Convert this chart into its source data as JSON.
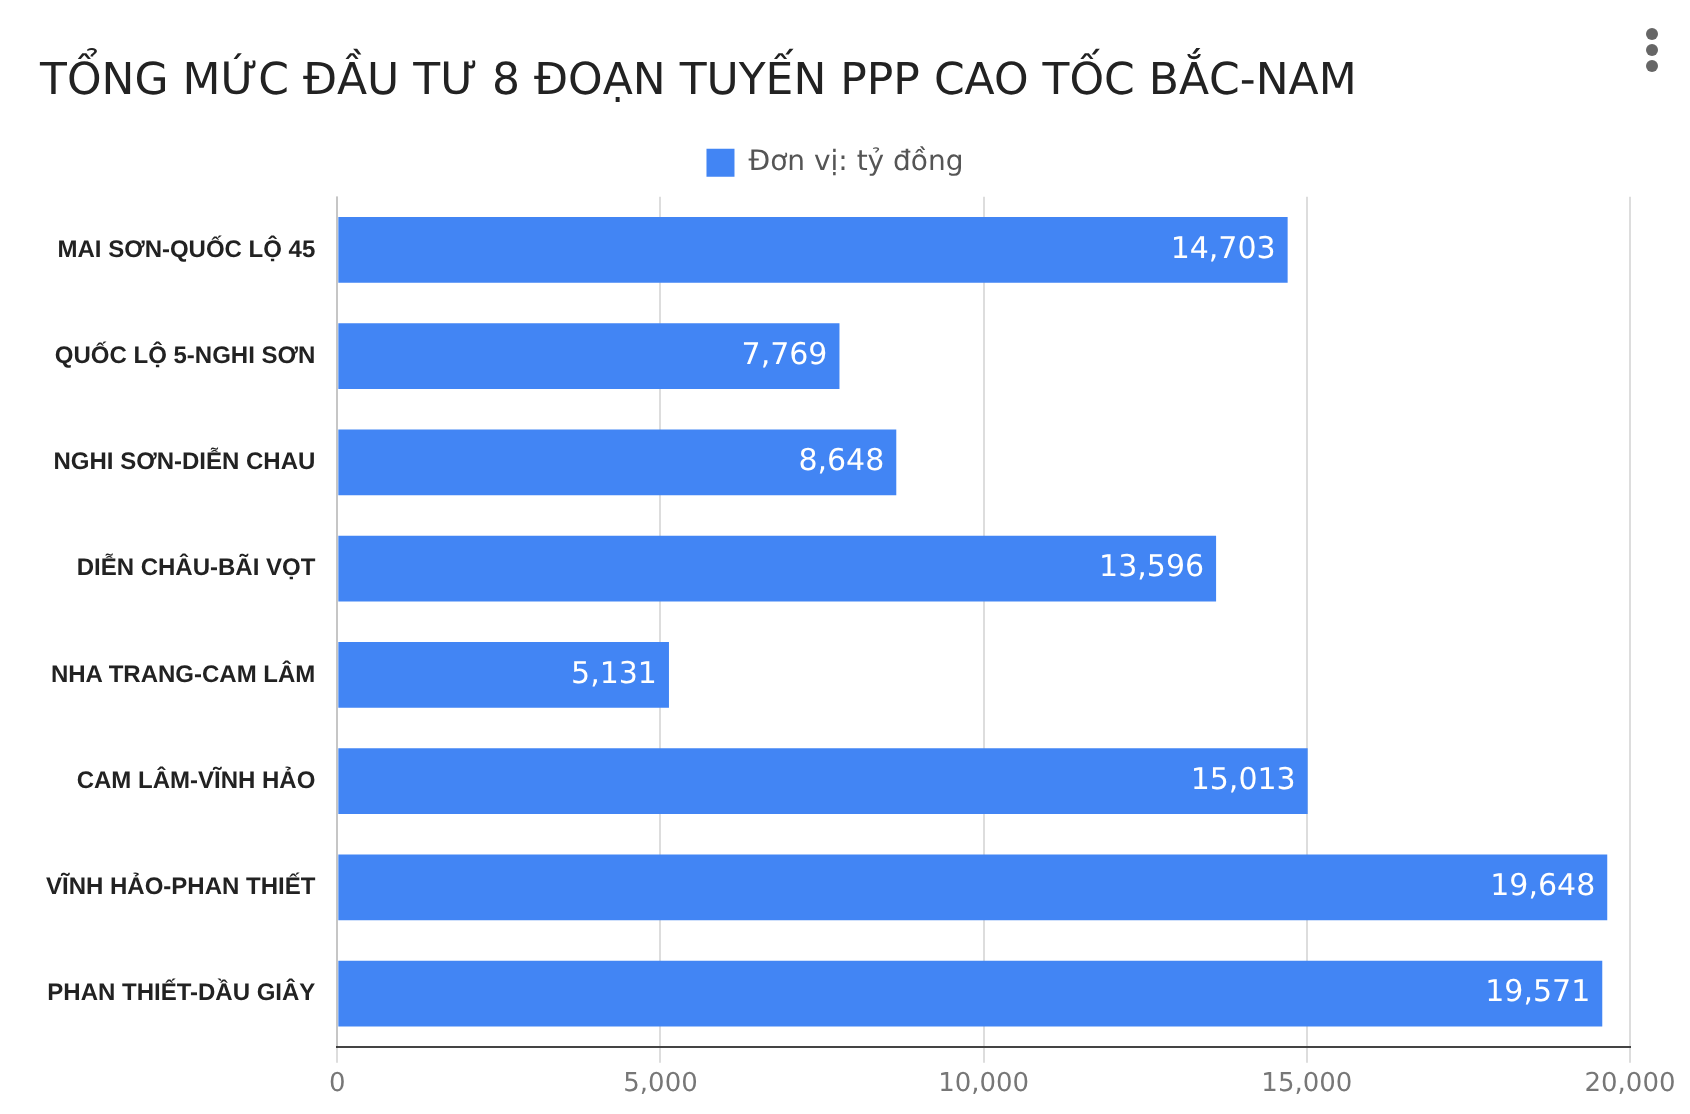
{
  "chart_data": {
    "type": "bar",
    "orientation": "horizontal",
    "title": "TỔNG MỨC ĐẦU TƯ 8 ĐOẠN TUYẾN PPP CAO TỐC BẮC-NAM",
    "categories": [
      "MAI SƠN-QUỐC LỘ 45",
      "QUỐC LỘ 5-NGHI SƠN",
      "NGHI SƠN-DIỄN CHAU",
      "DIỄN CHÂU-BÃI VỌT",
      "NHA TRANG-CAM LÂM",
      "CAM LÂM-VĨNH HẢO",
      "VĨNH HẢO-PHAN THIẾT",
      "PHAN THIẾT-DẦU GIÂY"
    ],
    "series": [
      {
        "name": "Đơn vị: tỷ đồng",
        "color": "#4285f4",
        "values": [
          14703,
          7769,
          8648,
          13596,
          5131,
          15013,
          19648,
          19571
        ],
        "value_labels": [
          "14,703",
          "7,769",
          "8,648",
          "13,596",
          "5,131",
          "15,013",
          "19,648",
          "19,571"
        ]
      }
    ],
    "xlim": [
      0,
      20000
    ],
    "xticks": [
      0,
      {
        "value": 5000,
        "label": "5,000"
      },
      {
        "value": 10000,
        "label": "10,000"
      },
      {
        "value": 15000,
        "label": "15,000"
      },
      {
        "value": 20000,
        "label": "20,000"
      }
    ],
    "grid": "x",
    "legend": "top"
  }
}
